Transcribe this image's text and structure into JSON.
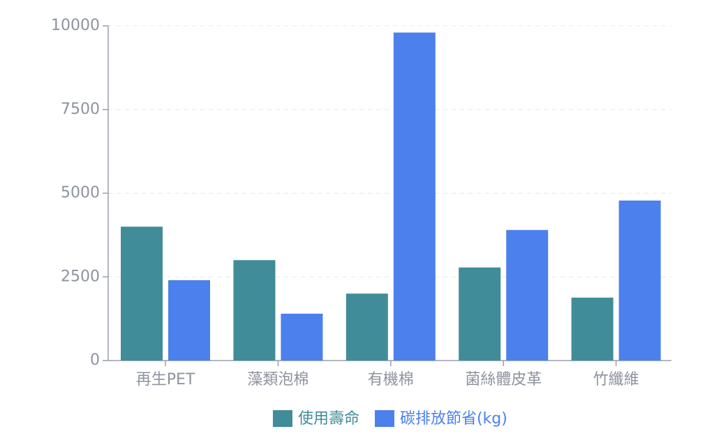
{
  "chart_data": {
    "type": "bar",
    "categories": [
      "再生PET",
      "藻類泡棉",
      "有機棉",
      "菌絲體皮革",
      "竹纖維"
    ],
    "series": [
      {
        "name": "使用壽命",
        "color": "#418c99",
        "values": [
          4000,
          3000,
          2000,
          2780,
          1880
        ]
      },
      {
        "name": "碳排放節省(kg)",
        "color": "#4c80ec",
        "values": [
          2400,
          1400,
          9800,
          3900,
          4780
        ]
      }
    ],
    "ylim": [
      0,
      10000
    ],
    "yticks": [
      0,
      2500,
      5000,
      7500,
      10000
    ],
    "grid": true,
    "legend": "bottom"
  }
}
